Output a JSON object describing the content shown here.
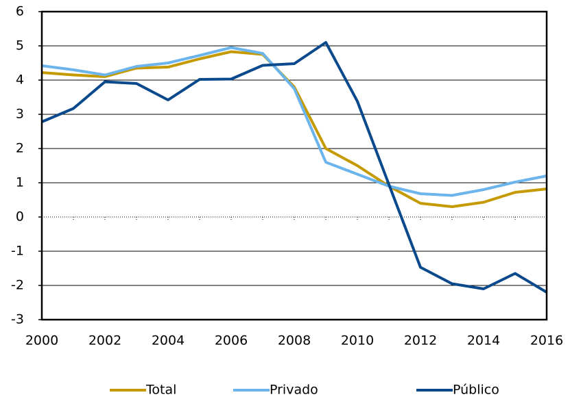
{
  "chart_data": {
    "type": "line",
    "x": [
      2000,
      2001,
      2002,
      2003,
      2004,
      2005,
      2006,
      2007,
      2008,
      2009,
      2010,
      2011,
      2012,
      2013,
      2014,
      2015,
      2016
    ],
    "series": [
      {
        "name": "Total",
        "color": "#c59a00",
        "values": [
          4.22,
          4.15,
          4.1,
          4.35,
          4.38,
          4.62,
          4.83,
          4.75,
          3.8,
          2.0,
          1.5,
          0.9,
          0.4,
          0.3,
          0.43,
          0.72,
          0.82
        ]
      },
      {
        "name": "Privado",
        "color": "#6cb4ec",
        "values": [
          4.42,
          4.3,
          4.15,
          4.4,
          4.5,
          4.72,
          4.95,
          4.78,
          3.75,
          1.6,
          1.25,
          0.9,
          0.68,
          0.63,
          0.8,
          1.02,
          1.2
        ]
      },
      {
        "name": "Público",
        "color": "#0a4a8c",
        "values": [
          2.78,
          3.17,
          3.95,
          3.9,
          3.42,
          4.02,
          4.03,
          4.43,
          4.48,
          5.1,
          3.38,
          0.95,
          -1.47,
          -1.95,
          -2.1,
          -1.65,
          -2.2
        ]
      }
    ],
    "xlim": [
      2000,
      2016
    ],
    "xticks": [
      2000,
      2002,
      2004,
      2006,
      2008,
      2010,
      2012,
      2014,
      2016
    ],
    "ylim": [
      -3,
      6
    ],
    "yticks": [
      -3,
      -2,
      -1,
      0,
      1,
      2,
      3,
      4,
      5,
      6
    ],
    "grid": true,
    "legend": "bottom"
  }
}
